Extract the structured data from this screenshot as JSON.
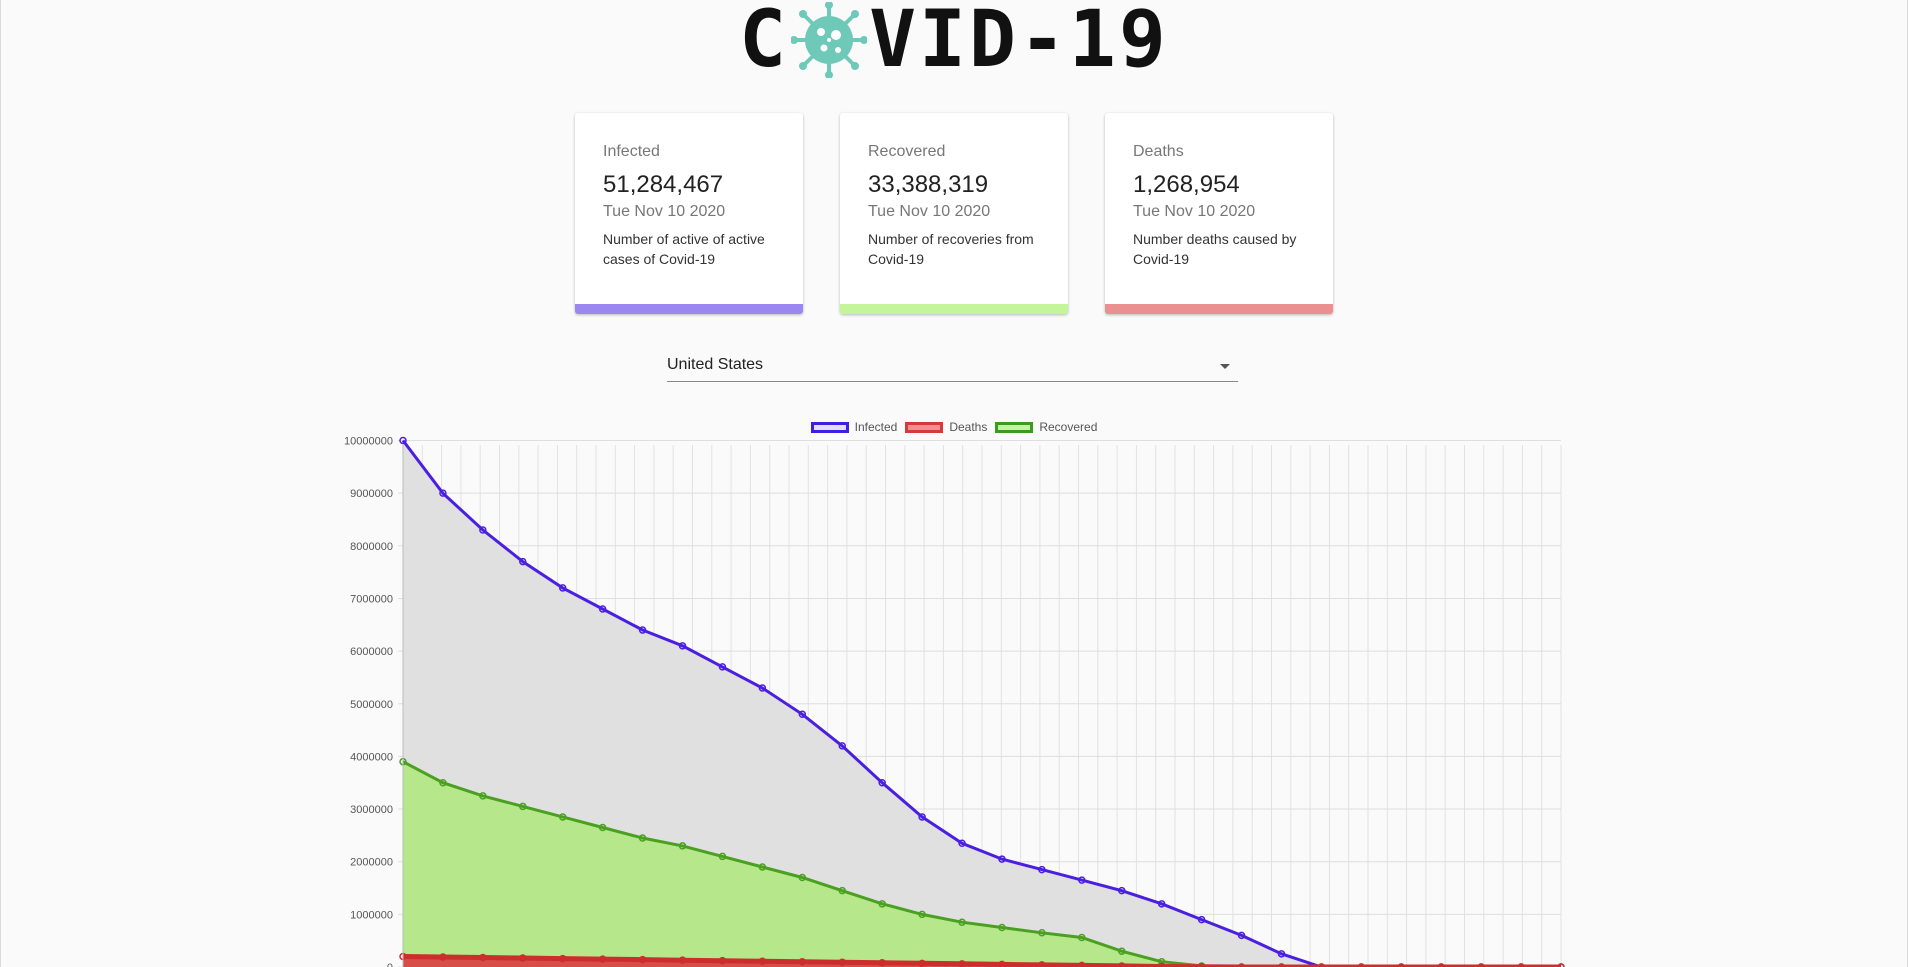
{
  "logo": {
    "left": "C",
    "right": "VID-19"
  },
  "cards": [
    {
      "title": "Infected",
      "value": "51,284,467",
      "date": "Tue Nov 10 2020",
      "description": "Number of active of active cases of Covid-19",
      "color": "#9b87f0"
    },
    {
      "title": "Recovered",
      "value": "33,388,319",
      "date": "Tue Nov 10 2020",
      "description": "Number of recoveries from Covid-19",
      "color": "#c4f59a"
    },
    {
      "title": "Deaths",
      "value": "1,268,954",
      "date": "Tue Nov 10 2020",
      "description": "Number deaths caused by Covid-19",
      "color": "#ea9090"
    }
  ],
  "country_select": {
    "value": "United States"
  },
  "legend": [
    {
      "label": "Infected",
      "border": "#3d1fe0",
      "fill": "#e3dcfb"
    },
    {
      "label": "Deaths",
      "border": "#d53a3a",
      "fill": "#ef8f8f"
    },
    {
      "label": "Recovered",
      "border": "#3b9a20",
      "fill": "#bff59c"
    }
  ],
  "chart_data": {
    "type": "area",
    "ylim": [
      0,
      10000000
    ],
    "yticks": [
      "10000000",
      "9000000",
      "8000000",
      "7000000",
      "6000000",
      "5000000",
      "4000000",
      "3000000",
      "2000000",
      "1000000",
      "0"
    ],
    "series": [
      {
        "name": "Infected",
        "color": "#4b1fe0",
        "fill": "#e0e0e0",
        "values": [
          10000000,
          9000000,
          8300000,
          7700000,
          7200000,
          6800000,
          6400000,
          6100000,
          5700000,
          5300000,
          4800000,
          4200000,
          3500000,
          2850000,
          2350000,
          2050000,
          1850000,
          1650000,
          1450000,
          1200000,
          900000,
          600000,
          250000,
          0,
          0,
          0,
          0,
          0,
          0,
          0
        ]
      },
      {
        "name": "Recovered",
        "color": "#4aa020",
        "fill": "#b3e886",
        "values": [
          3900000,
          3500000,
          3250000,
          3050000,
          2850000,
          2650000,
          2450000,
          2300000,
          2100000,
          1900000,
          1700000,
          1450000,
          1200000,
          1000000,
          850000,
          750000,
          650000,
          560000,
          300000,
          100000,
          20000,
          0,
          0,
          0,
          0,
          0,
          0,
          0,
          0,
          0
        ]
      },
      {
        "name": "Deaths",
        "color": "#cc2e2e",
        "fill": "#d94545",
        "values": [
          200000,
          190000,
          180000,
          170000,
          160000,
          150000,
          140000,
          130000,
          120000,
          110000,
          100000,
          90000,
          80000,
          70000,
          60000,
          50000,
          40000,
          30000,
          20000,
          10000,
          5000,
          0,
          0,
          0,
          0,
          0,
          0,
          0,
          0,
          0
        ]
      }
    ]
  }
}
